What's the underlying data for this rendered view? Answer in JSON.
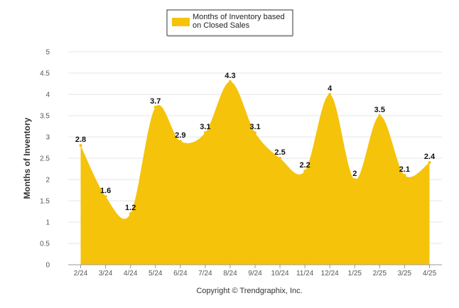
{
  "chart_data": {
    "type": "area",
    "categories": [
      "2/24",
      "3/24",
      "4/24",
      "5/24",
      "6/24",
      "7/24",
      "8/24",
      "9/24",
      "10/24",
      "11/24",
      "12/24",
      "1/25",
      "2/25",
      "3/25",
      "4/25"
    ],
    "series": [
      {
        "name": "Months of Inventory based on Closed Sales",
        "values": [
          2.8,
          1.6,
          1.2,
          3.7,
          2.9,
          3.1,
          4.3,
          3.1,
          2.5,
          2.2,
          4,
          2,
          3.5,
          2.1,
          2.4
        ],
        "data_labels": [
          "2.8",
          "1.6",
          "1.2",
          "3.7",
          "2.9",
          "3.1",
          "4.3",
          "3.1",
          "2.5",
          "2.2",
          "4",
          "2",
          "3.5",
          "2.1",
          "2.4"
        ],
        "color": "#F5C30A"
      }
    ],
    "ylabel": "Months of Inventory",
    "xlabel": "",
    "ylim": [
      0,
      5
    ],
    "yticks": [
      "0",
      "0.5",
      "1",
      "1.5",
      "2",
      "2.5",
      "3",
      "3.5",
      "4",
      "4.5",
      "5"
    ],
    "grid": true,
    "legend_position": "top-center",
    "credit": "Copyright © Trendgraphix, Inc."
  }
}
